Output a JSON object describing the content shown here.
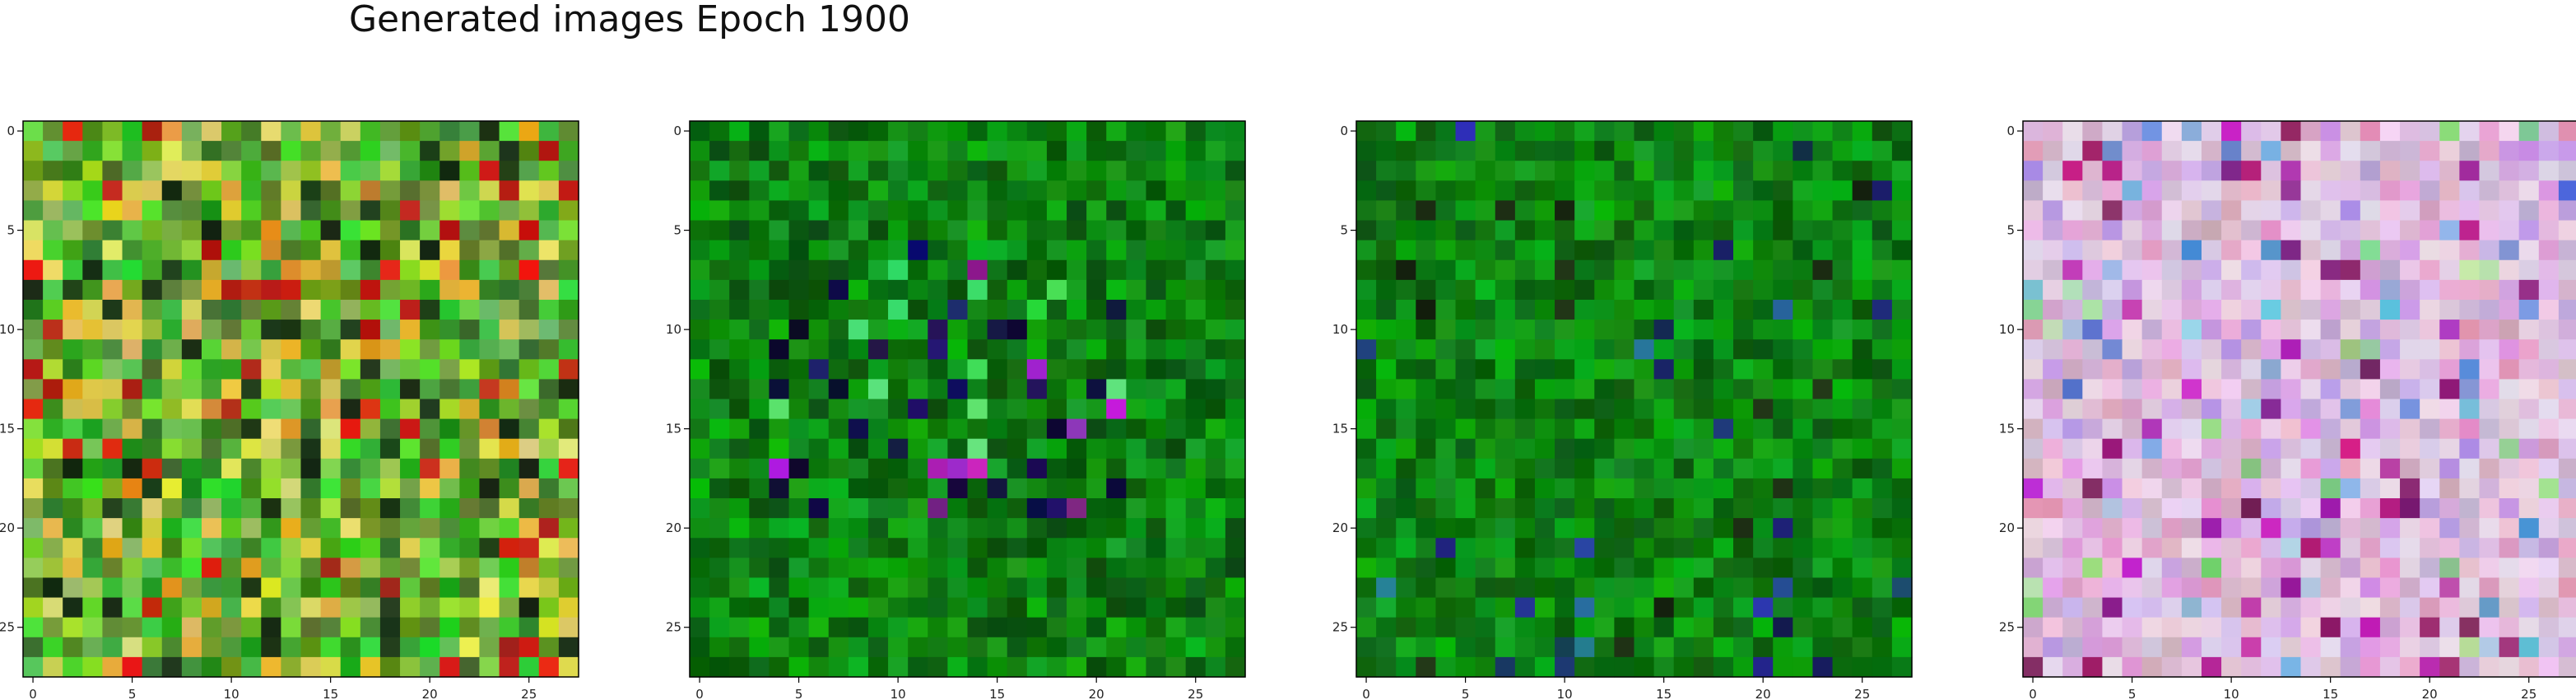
{
  "figure": {
    "title": "Generated images Epoch 1900"
  },
  "panels": [
    {
      "name": "generated-image-1",
      "palette": "mixed-earth"
    },
    {
      "name": "generated-image-2",
      "palette": "green-dark-accents"
    },
    {
      "name": "generated-image-3",
      "palette": "green"
    },
    {
      "name": "generated-image-4",
      "palette": "pastel-lavender"
    }
  ],
  "axes": {
    "x_ticks": [
      "0",
      "5",
      "10",
      "15",
      "20",
      "25"
    ],
    "y_ticks": [
      "0",
      "5",
      "10",
      "15",
      "20",
      "25"
    ],
    "grid_size": 28
  }
}
